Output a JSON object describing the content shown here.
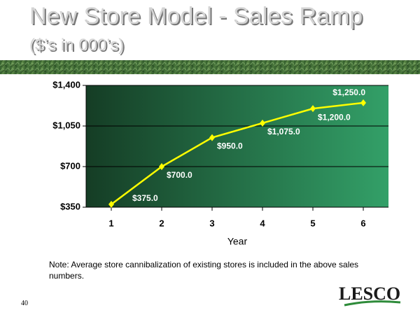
{
  "chart_data": {
    "type": "line",
    "title": "New Store Model - Sales Ramp",
    "subtitle": "($’s in 000’s)",
    "x_label": "Year",
    "categories": [
      "1",
      "2",
      "3",
      "4",
      "5",
      "6"
    ],
    "values": [
      375,
      700,
      950,
      1075,
      1200,
      1250
    ],
    "value_labels": [
      "$375.0",
      "$700.0",
      "$950.0",
      "$1,075.0",
      "$1,200.0",
      "$1,250.0"
    ],
    "color": "#ffff00",
    "ylim": [
      350,
      1400
    ],
    "yticks": [
      {
        "value": 350,
        "label": "$350"
      },
      {
        "value": 700,
        "label": "$700"
      },
      {
        "value": 1050,
        "label": "$1,050"
      },
      {
        "value": 1400,
        "label": "$1,400"
      }
    ],
    "grid": true
  },
  "note": "Note:  Average store cannibalization of existing stores is included in the above sales numbers.",
  "page_number": "40",
  "logo": "LESCO"
}
